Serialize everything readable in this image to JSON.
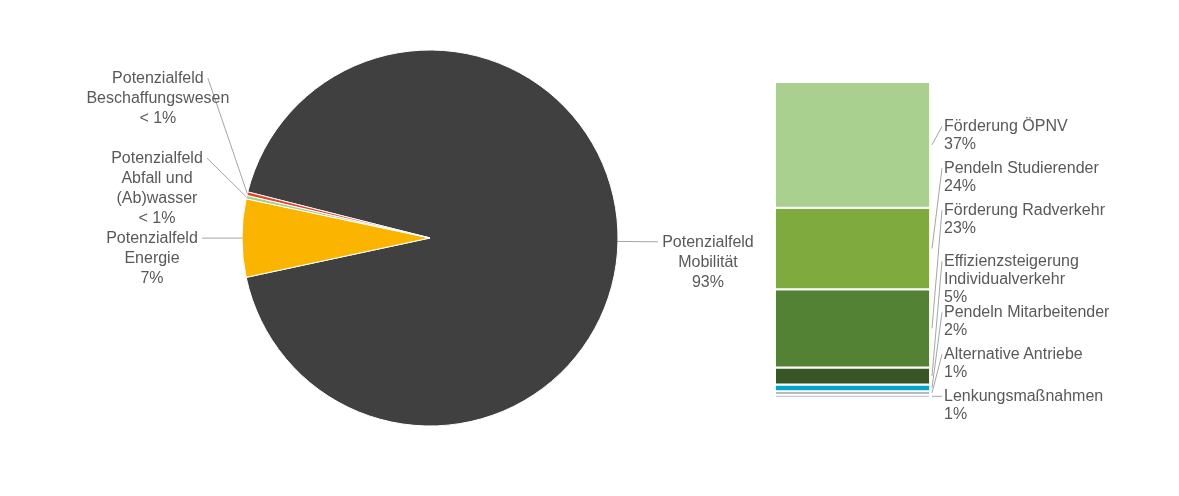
{
  "chart_data": [
    {
      "type": "pie",
      "categories": [
        "Potenzialfeld Mobilität",
        "Potenzialfeld Energie",
        "Potenzialfeld Abfall und (Ab)wasser",
        "Potenzialfeld Beschaffungswesen"
      ],
      "values": [
        92.7,
        6.7,
        0.3,
        0.3
      ],
      "colors": [
        "#404040",
        "#fbb400",
        "#a9d08e",
        "#e0452c"
      ],
      "value_labels": [
        "93%",
        "7%",
        "< 1%",
        "< 1%"
      ]
    },
    {
      "type": "bar",
      "stacked": true,
      "categories": [
        null
      ],
      "series": [
        {
          "name": "Lenkungsmaßnahmen",
          "color": "#c9c9c9",
          "values": [
            1
          ],
          "value_labels": [
            "1%"
          ]
        },
        {
          "name": "Alternative Antriebe",
          "color": "#7f7f7f",
          "values": [
            1
          ],
          "value_labels": [
            "1%"
          ]
        },
        {
          "name": "Pendeln Mitarbeitender",
          "color": "#00a7c8",
          "values": [
            2
          ],
          "value_labels": [
            "2%"
          ]
        },
        {
          "name": "Effizienzsteigerung Individualverkehr",
          "color": "#375623",
          "values": [
            5
          ],
          "value_labels": [
            "5%"
          ]
        },
        {
          "name": "Förderung Radverkehr",
          "color": "#548235",
          "values": [
            23
          ],
          "value_labels": [
            "23%"
          ]
        },
        {
          "name": "Pendeln Studierender",
          "color": "#7faa3e",
          "values": [
            24
          ],
          "value_labels": [
            "24%"
          ]
        },
        {
          "name": "Förderung ÖPNV",
          "color": "#a9d08e",
          "values": [
            37
          ],
          "value_labels": [
            "37%"
          ]
        }
      ]
    }
  ]
}
